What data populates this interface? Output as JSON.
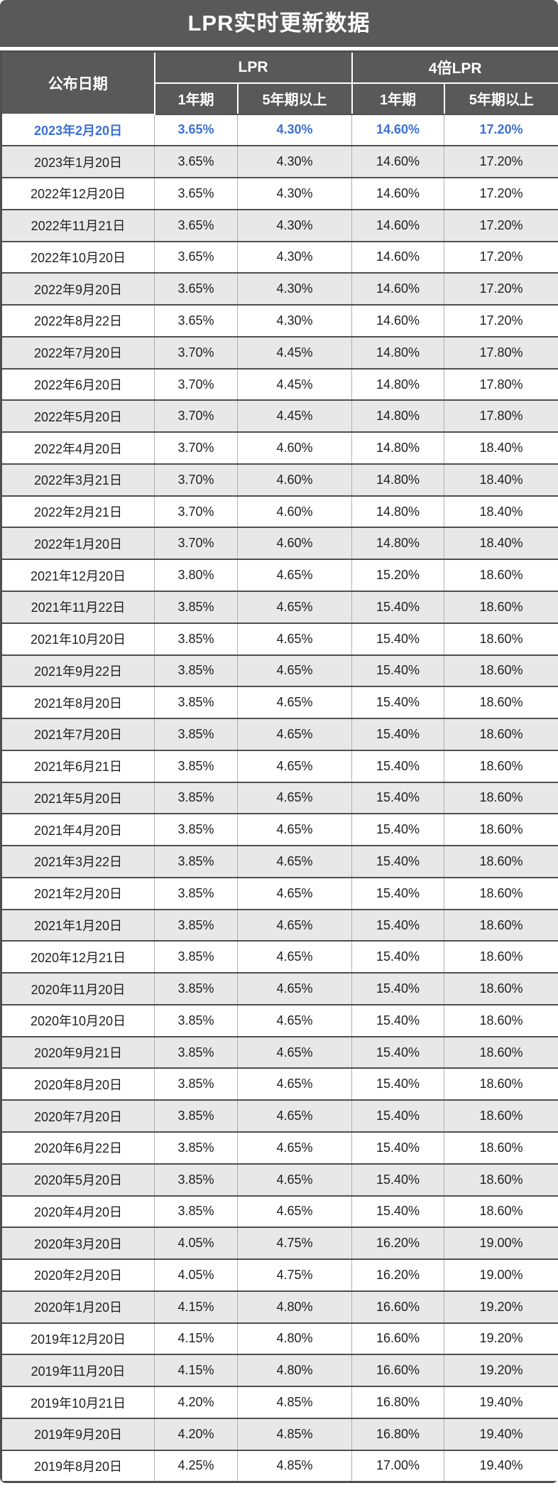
{
  "chart_data": {
    "type": "table",
    "title": "LPR实时更新数据",
    "header": {
      "date": "公布日期",
      "lpr_group": "LPR",
      "lpr4_group": "4倍LPR",
      "sub": [
        "1年期",
        "5年期以上",
        "1年期",
        "5年期以上"
      ]
    },
    "highlight_row": 0,
    "rows": [
      [
        "2023年2月20日",
        "3.65%",
        "4.30%",
        "14.60%",
        "17.20%"
      ],
      [
        "2023年1月20日",
        "3.65%",
        "4.30%",
        "14.60%",
        "17.20%"
      ],
      [
        "2022年12月20日",
        "3.65%",
        "4.30%",
        "14.60%",
        "17.20%"
      ],
      [
        "2022年11月21日",
        "3.65%",
        "4.30%",
        "14.60%",
        "17.20%"
      ],
      [
        "2022年10月20日",
        "3.65%",
        "4.30%",
        "14.60%",
        "17.20%"
      ],
      [
        "2022年9月20日",
        "3.65%",
        "4.30%",
        "14.60%",
        "17.20%"
      ],
      [
        "2022年8月22日",
        "3.65%",
        "4.30%",
        "14.60%",
        "17.20%"
      ],
      [
        "2022年7月20日",
        "3.70%",
        "4.45%",
        "14.80%",
        "17.80%"
      ],
      [
        "2022年6月20日",
        "3.70%",
        "4.45%",
        "14.80%",
        "17.80%"
      ],
      [
        "2022年5月20日",
        "3.70%",
        "4.45%",
        "14.80%",
        "17.80%"
      ],
      [
        "2022年4月20日",
        "3.70%",
        "4.60%",
        "14.80%",
        "18.40%"
      ],
      [
        "2022年3月21日",
        "3.70%",
        "4.60%",
        "14.80%",
        "18.40%"
      ],
      [
        "2022年2月21日",
        "3.70%",
        "4.60%",
        "14.80%",
        "18.40%"
      ],
      [
        "2022年1月20日",
        "3.70%",
        "4.60%",
        "14.80%",
        "18.40%"
      ],
      [
        "2021年12月20日",
        "3.80%",
        "4.65%",
        "15.20%",
        "18.60%"
      ],
      [
        "2021年11月22日",
        "3.85%",
        "4.65%",
        "15.40%",
        "18.60%"
      ],
      [
        "2021年10月20日",
        "3.85%",
        "4.65%",
        "15.40%",
        "18.60%"
      ],
      [
        "2021年9月22日",
        "3.85%",
        "4.65%",
        "15.40%",
        "18.60%"
      ],
      [
        "2021年8月20日",
        "3.85%",
        "4.65%",
        "15.40%",
        "18.60%"
      ],
      [
        "2021年7月20日",
        "3.85%",
        "4.65%",
        "15.40%",
        "18.60%"
      ],
      [
        "2021年6月21日",
        "3.85%",
        "4.65%",
        "15.40%",
        "18.60%"
      ],
      [
        "2021年5月20日",
        "3.85%",
        "4.65%",
        "15.40%",
        "18.60%"
      ],
      [
        "2021年4月20日",
        "3.85%",
        "4.65%",
        "15.40%",
        "18.60%"
      ],
      [
        "2021年3月22日",
        "3.85%",
        "4.65%",
        "15.40%",
        "18.60%"
      ],
      [
        "2021年2月20日",
        "3.85%",
        "4.65%",
        "15.40%",
        "18.60%"
      ],
      [
        "2021年1月20日",
        "3.85%",
        "4.65%",
        "15.40%",
        "18.60%"
      ],
      [
        "2020年12月21日",
        "3.85%",
        "4.65%",
        "15.40%",
        "18.60%"
      ],
      [
        "2020年11月20日",
        "3.85%",
        "4.65%",
        "15.40%",
        "18.60%"
      ],
      [
        "2020年10月20日",
        "3.85%",
        "4.65%",
        "15.40%",
        "18.60%"
      ],
      [
        "2020年9月21日",
        "3.85%",
        "4.65%",
        "15.40%",
        "18.60%"
      ],
      [
        "2020年8月20日",
        "3.85%",
        "4.65%",
        "15.40%",
        "18.60%"
      ],
      [
        "2020年7月20日",
        "3.85%",
        "4.65%",
        "15.40%",
        "18.60%"
      ],
      [
        "2020年6月22日",
        "3.85%",
        "4.65%",
        "15.40%",
        "18.60%"
      ],
      [
        "2020年5月20日",
        "3.85%",
        "4.65%",
        "15.40%",
        "18.60%"
      ],
      [
        "2020年4月20日",
        "3.85%",
        "4.65%",
        "15.40%",
        "18.60%"
      ],
      [
        "2020年3月20日",
        "4.05%",
        "4.75%",
        "16.20%",
        "19.00%"
      ],
      [
        "2020年2月20日",
        "4.05%",
        "4.75%",
        "16.20%",
        "19.00%"
      ],
      [
        "2020年1月20日",
        "4.15%",
        "4.80%",
        "16.60%",
        "19.20%"
      ],
      [
        "2019年12月20日",
        "4.15%",
        "4.80%",
        "16.60%",
        "19.20%"
      ],
      [
        "2019年11月20日",
        "4.15%",
        "4.80%",
        "16.60%",
        "19.20%"
      ],
      [
        "2019年10月21日",
        "4.20%",
        "4.85%",
        "16.80%",
        "19.40%"
      ],
      [
        "2019年9月20日",
        "4.20%",
        "4.85%",
        "16.80%",
        "19.40%"
      ],
      [
        "2019年8月20日",
        "4.25%",
        "4.85%",
        "17.00%",
        "19.40%"
      ]
    ]
  },
  "colors": {
    "header_bg": "#595959",
    "header_text": "#ffffff",
    "highlight_text": "#3b70d4",
    "row_alt_bg": "#e8e8e8",
    "row_bg": "#ffffff",
    "border_dark": "#4f4f4f",
    "border_light": "#b0b0b0",
    "body_text": "#1f1f1f"
  }
}
